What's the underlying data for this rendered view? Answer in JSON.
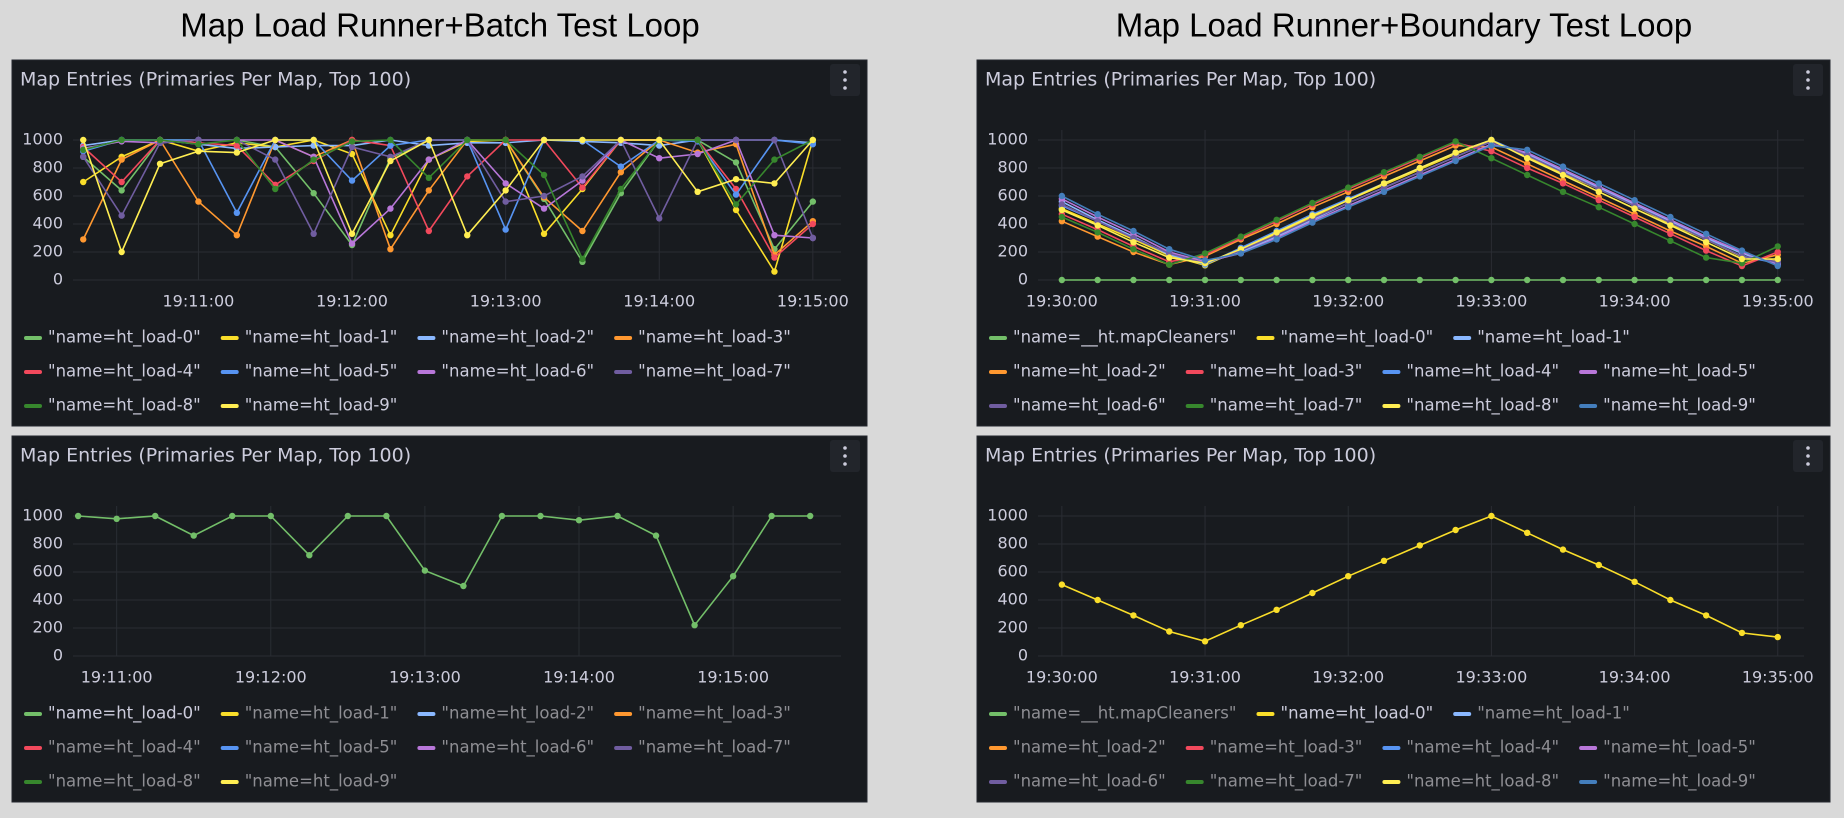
{
  "headings": [
    "Map Load Runner+Batch Test Loop",
    "Map Load Runner+Boundary Test Loop"
  ],
  "chart_data": [
    {
      "type": "line",
      "title": "Map Entries (Primaries Per Map, Top 100)",
      "x": [
        "19:10:15",
        "19:10:30",
        "19:10:45",
        "19:11:00",
        "19:11:15",
        "19:11:30",
        "19:11:45",
        "19:12:00",
        "19:12:15",
        "19:12:30",
        "19:12:45",
        "19:13:00",
        "19:13:15",
        "19:13:30",
        "19:13:45",
        "19:14:00",
        "19:14:15",
        "19:14:30",
        "19:14:45",
        "19:15:00"
      ],
      "xlim": [
        "19:10:11",
        "19:15:11"
      ],
      "xticks": [
        "19:11:00",
        "19:12:00",
        "19:13:00",
        "19:14:00",
        "19:15:00"
      ],
      "ylim": [
        0,
        1000
      ],
      "yticks": [
        0,
        200,
        400,
        600,
        800,
        1000
      ],
      "grid": true,
      "series": [
        {
          "name": "\"name=ht_load-0\"",
          "color": "#73bf69",
          "values": [
            880,
            640,
            1000,
            1000,
            1000,
            950,
            620,
            250,
            870,
            1000,
            1000,
            1000,
            580,
            130,
            620,
            1000,
            1000,
            840,
            220,
            560
          ]
        },
        {
          "name": "\"name=ht_load-1\"",
          "color": "#fade2a",
          "values": [
            700,
            880,
            1000,
            920,
            980,
            950,
            1000,
            900,
            320,
            860,
            990,
            1000,
            330,
            650,
            1000,
            1000,
            1000,
            500,
            60,
            1000
          ]
        },
        {
          "name": "\"name=ht_load-2\"",
          "color": "#8ab8ff",
          "values": [
            960,
            1000,
            1000,
            970,
            940,
            950,
            960,
            960,
            1000,
            960,
            980,
            980,
            1000,
            990,
            980,
            960,
            1000,
            1000,
            1000,
            980
          ]
        },
        {
          "name": "\"name=ht_load-3\"",
          "color": "#ff9830",
          "values": [
            290,
            860,
            1000,
            560,
            320,
            1000,
            880,
            1000,
            220,
            640,
            1000,
            1000,
            590,
            350,
            770,
            1000,
            910,
            970,
            180,
            420
          ]
        },
        {
          "name": "\"name=ht_load-4\"",
          "color": "#f2495c",
          "values": [
            950,
            700,
            1000,
            980,
            960,
            680,
            850,
            1000,
            960,
            350,
            740,
            1000,
            1000,
            660,
            1000,
            1000,
            1000,
            650,
            160,
            400
          ]
        },
        {
          "name": "\"name=ht_load-5\"",
          "color": "#5794f2",
          "values": [
            920,
            1000,
            1000,
            1000,
            480,
            1000,
            1000,
            710,
            960,
            1000,
            1000,
            360,
            1000,
            1000,
            810,
            1000,
            990,
            610,
            1000,
            970
          ]
        },
        {
          "name": "\"name=ht_load-6\"",
          "color": "#b877d9",
          "values": [
            940,
            990,
            980,
            1000,
            1000,
            1000,
            880,
            260,
            510,
            860,
            1000,
            690,
            510,
            710,
            1000,
            870,
            900,
            1000,
            320,
            300
          ]
        },
        {
          "name": "\"name=ht_load-7\"",
          "color": "#705da0",
          "values": [
            880,
            460,
            980,
            1000,
            1000,
            860,
            330,
            950,
            880,
            1000,
            1000,
            560,
            600,
            740,
            1000,
            440,
            1000,
            1000,
            1000,
            300
          ]
        },
        {
          "name": "\"name=ht_load-8\"",
          "color": "#37872d",
          "values": [
            930,
            1000,
            1000,
            970,
            1000,
            650,
            860,
            990,
            1000,
            730,
            1000,
            1000,
            750,
            150,
            650,
            1000,
            1000,
            540,
            860,
            1000
          ]
        },
        {
          "name": "\"name=ht_load-9\"",
          "color": "#ffee52",
          "values": [
            1000,
            200,
            830,
            920,
            910,
            1000,
            1000,
            330,
            850,
            1000,
            320,
            640,
            1000,
            1000,
            1000,
            1000,
            630,
            720,
            690,
            1000
          ]
        }
      ]
    },
    {
      "type": "line",
      "title": "Map Entries (Primaries Per Map, Top 100)",
      "x": [
        "19:30:00",
        "19:30:15",
        "19:30:30",
        "19:30:45",
        "19:31:00",
        "19:31:15",
        "19:31:30",
        "19:31:45",
        "19:32:00",
        "19:32:15",
        "19:32:30",
        "19:32:45",
        "19:33:00",
        "19:33:15",
        "19:33:30",
        "19:33:45",
        "19:34:00",
        "19:34:15",
        "19:34:30",
        "19:34:45",
        "19:35:00"
      ],
      "xlim": [
        "19:29:50",
        "19:35:11"
      ],
      "xticks": [
        "19:30:00",
        "19:31:00",
        "19:32:00",
        "19:33:00",
        "19:34:00",
        "19:35:00"
      ],
      "ylim": [
        0,
        1000
      ],
      "yticks": [
        0,
        200,
        400,
        600,
        800,
        1000
      ],
      "grid": true,
      "series": [
        {
          "name": "\"name=__ht.mapCleaners\"",
          "color": "#73bf69",
          "values": [
            0,
            0,
            0,
            0,
            0,
            0,
            0,
            0,
            0,
            0,
            0,
            0,
            0,
            0,
            0,
            0,
            0,
            0,
            0,
            0,
            0
          ]
        },
        {
          "name": "\"name=ht_load-0\"",
          "color": "#fade2a",
          "values": [
            510,
            400,
            290,
            175,
            105,
            220,
            330,
            450,
            570,
            680,
            790,
            900,
            1000,
            880,
            760,
            650,
            530,
            400,
            290,
            165,
            135
          ]
        },
        {
          "name": "\"name=ht_load-1\"",
          "color": "#8ab8ff",
          "values": [
            560,
            430,
            310,
            180,
            120,
            200,
            310,
            430,
            550,
            660,
            770,
            880,
            990,
            900,
            780,
            660,
            540,
            420,
            300,
            190,
            110
          ]
        },
        {
          "name": "\"name=ht_load-2\"",
          "color": "#ff9830",
          "values": [
            420,
            310,
            200,
            110,
            170,
            290,
            400,
            520,
            630,
            740,
            850,
            960,
            950,
            830,
            710,
            590,
            470,
            350,
            240,
            120,
            180
          ]
        },
        {
          "name": "\"name=ht_load-3\"",
          "color": "#f2495c",
          "values": [
            470,
            360,
            240,
            130,
            180,
            300,
            420,
            540,
            650,
            760,
            870,
            980,
            920,
            800,
            690,
            570,
            450,
            330,
            210,
            100,
            200
          ]
        },
        {
          "name": "\"name=ht_load-4\"",
          "color": "#5794f2",
          "values": [
            530,
            420,
            300,
            190,
            110,
            230,
            350,
            470,
            580,
            690,
            800,
            910,
            1000,
            890,
            770,
            650,
            530,
            410,
            290,
            170,
            120
          ]
        },
        {
          "name": "\"name=ht_load-5\"",
          "color": "#b877d9",
          "values": [
            580,
            450,
            330,
            200,
            130,
            190,
            300,
            420,
            530,
            640,
            750,
            860,
            970,
            910,
            790,
            670,
            550,
            430,
            310,
            200,
            110
          ]
        },
        {
          "name": "\"name=ht_load-6\"",
          "color": "#705da0",
          "values": [
            540,
            420,
            300,
            190,
            120,
            210,
            320,
            440,
            550,
            660,
            770,
            880,
            990,
            890,
            770,
            650,
            530,
            410,
            290,
            170,
            130
          ]
        },
        {
          "name": "\"name=ht_load-7\"",
          "color": "#37872d",
          "values": [
            450,
            340,
            220,
            110,
            190,
            310,
            430,
            550,
            660,
            770,
            880,
            990,
            870,
            750,
            630,
            520,
            400,
            280,
            160,
            120,
            240
          ]
        },
        {
          "name": "\"name=ht_load-8\"",
          "color": "#ffee52",
          "values": [
            500,
            390,
            270,
            160,
            120,
            220,
            340,
            460,
            570,
            690,
            800,
            910,
            1000,
            870,
            750,
            630,
            510,
            390,
            270,
            150,
            150
          ]
        },
        {
          "name": "\"name=ht_load-9\"",
          "color": "#447ebc",
          "values": [
            600,
            470,
            350,
            220,
            140,
            190,
            290,
            410,
            520,
            630,
            740,
            850,
            960,
            930,
            810,
            690,
            570,
            450,
            330,
            210,
            100
          ]
        }
      ]
    },
    {
      "type": "line",
      "title": "Map Entries (Primaries Per Map, Top 100)",
      "x": [
        "19:10:45",
        "19:11:00",
        "19:11:15",
        "19:11:30",
        "19:11:45",
        "19:12:00",
        "19:12:15",
        "19:12:30",
        "19:12:45",
        "19:13:00",
        "19:13:15",
        "19:13:30",
        "19:13:45",
        "19:14:00",
        "19:14:15",
        "19:14:30",
        "19:14:45",
        "19:15:00",
        "19:15:15",
        "19:15:30"
      ],
      "xlim": [
        "19:10:43",
        "19:15:42"
      ],
      "xticks": [
        "19:11:00",
        "19:12:00",
        "19:13:00",
        "19:14:00",
        "19:15:00"
      ],
      "ylim": [
        0,
        1000
      ],
      "yticks": [
        0,
        200,
        400,
        600,
        800,
        1000
      ],
      "grid": true,
      "series": [
        {
          "name": "\"name=ht_load-0\"",
          "color": "#73bf69",
          "values": [
            1000,
            980,
            1000,
            860,
            1000,
            1000,
            720,
            1000,
            1000,
            610,
            500,
            1000,
            1000,
            970,
            1000,
            860,
            220,
            570,
            1000,
            1000
          ]
        },
        {
          "name": "\"name=ht_load-1\"",
          "color": "#fade2a",
          "visible": false
        },
        {
          "name": "\"name=ht_load-2\"",
          "color": "#8ab8ff",
          "visible": false
        },
        {
          "name": "\"name=ht_load-3\"",
          "color": "#ff9830",
          "visible": false
        },
        {
          "name": "\"name=ht_load-4\"",
          "color": "#f2495c",
          "visible": false
        },
        {
          "name": "\"name=ht_load-5\"",
          "color": "#5794f2",
          "visible": false
        },
        {
          "name": "\"name=ht_load-6\"",
          "color": "#b877d9",
          "visible": false
        },
        {
          "name": "\"name=ht_load-7\"",
          "color": "#705da0",
          "visible": false
        },
        {
          "name": "\"name=ht_load-8\"",
          "color": "#37872d",
          "visible": false
        },
        {
          "name": "\"name=ht_load-9\"",
          "color": "#ffee52",
          "visible": false
        }
      ]
    },
    {
      "type": "line",
      "title": "Map Entries (Primaries Per Map, Top 100)",
      "x": [
        "19:30:00",
        "19:30:15",
        "19:30:30",
        "19:30:45",
        "19:31:00",
        "19:31:15",
        "19:31:30",
        "19:31:45",
        "19:32:00",
        "19:32:15",
        "19:32:30",
        "19:32:45",
        "19:33:00",
        "19:33:15",
        "19:33:30",
        "19:33:45",
        "19:34:00",
        "19:34:15",
        "19:34:30",
        "19:34:45",
        "19:35:00"
      ],
      "xlim": [
        "19:29:50",
        "19:35:11"
      ],
      "xticks": [
        "19:30:00",
        "19:31:00",
        "19:32:00",
        "19:33:00",
        "19:34:00",
        "19:35:00"
      ],
      "ylim": [
        0,
        1000
      ],
      "yticks": [
        0,
        200,
        400,
        600,
        800,
        1000
      ],
      "grid": true,
      "series": [
        {
          "name": "\"name=__ht.mapCleaners\"",
          "color": "#73bf69",
          "visible": false
        },
        {
          "name": "\"name=ht_load-0\"",
          "color": "#fade2a",
          "values": [
            510,
            400,
            290,
            175,
            105,
            220,
            330,
            450,
            570,
            680,
            790,
            900,
            1000,
            880,
            760,
            650,
            530,
            400,
            290,
            165,
            135
          ]
        },
        {
          "name": "\"name=ht_load-1\"",
          "color": "#8ab8ff",
          "visible": false
        },
        {
          "name": "\"name=ht_load-2\"",
          "color": "#ff9830",
          "visible": false
        },
        {
          "name": "\"name=ht_load-3\"",
          "color": "#f2495c",
          "visible": false
        },
        {
          "name": "\"name=ht_load-4\"",
          "color": "#5794f2",
          "visible": false
        },
        {
          "name": "\"name=ht_load-5\"",
          "color": "#b877d9",
          "visible": false
        },
        {
          "name": "\"name=ht_load-6\"",
          "color": "#705da0",
          "visible": false
        },
        {
          "name": "\"name=ht_load-7\"",
          "color": "#37872d",
          "visible": false
        },
        {
          "name": "\"name=ht_load-8\"",
          "color": "#ffee52",
          "visible": false
        },
        {
          "name": "\"name=ht_load-9\"",
          "color": "#447ebc",
          "visible": false
        }
      ]
    }
  ]
}
